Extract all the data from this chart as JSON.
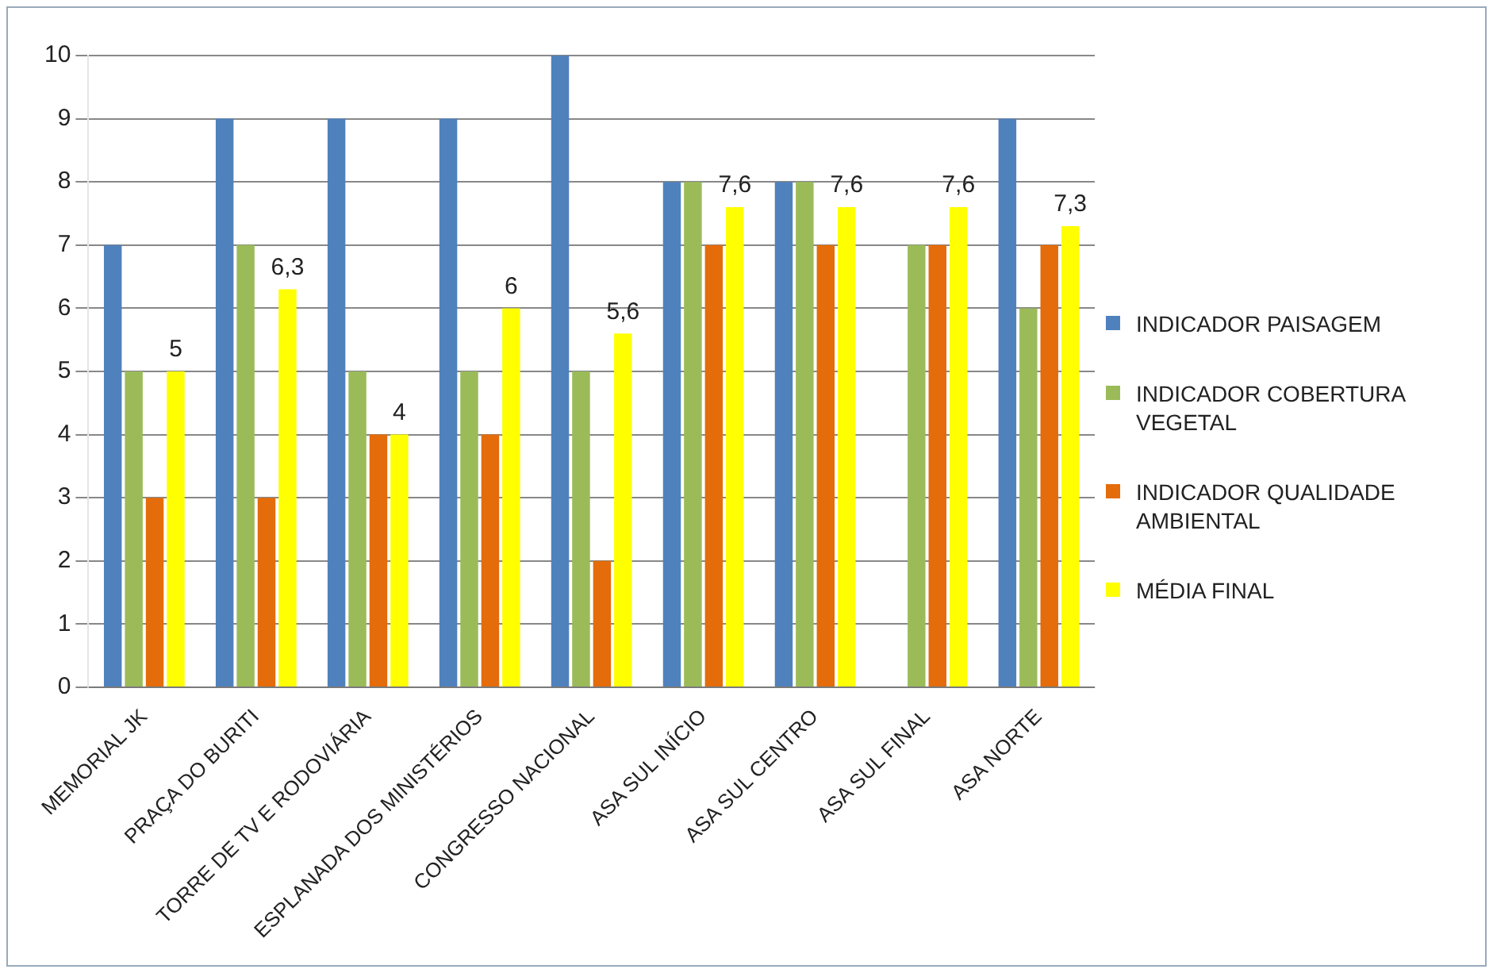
{
  "chart_data": {
    "type": "bar",
    "categories": [
      "MEMORIAL JK",
      "PRAÇA DO BURITI",
      "TORRE DE TV E RODOVIÁRIA",
      "ESPLANADA DOS MINISTÉRIOS",
      "CONGRESSO NACIONAL",
      "ASA SUL INÍCIO",
      "ASA SUL CENTRO",
      "ASA SUL FINAL",
      "ASA NORTE"
    ],
    "series": [
      {
        "name": "INDICADOR PAISAGEM",
        "color": "#4f81bd",
        "values": [
          7,
          9,
          9,
          9,
          10,
          8,
          8,
          0,
          9
        ]
      },
      {
        "name": "INDICADOR COBERTURA VEGETAL",
        "color": "#9bbb59",
        "values": [
          5,
          7,
          5,
          5,
          5,
          8,
          8,
          7,
          6
        ]
      },
      {
        "name": "INDICADOR QUALIDADE AMBIENTAL",
        "color": "#e46c0a",
        "values": [
          3,
          3,
          4,
          4,
          2,
          7,
          7,
          7,
          7
        ]
      },
      {
        "name": "MÉDIA FINAL",
        "color": "#ffff00",
        "values": [
          5,
          6.3,
          4,
          6,
          5.6,
          7.6,
          7.6,
          7.6,
          7.3
        ],
        "value_labels": [
          "5",
          "6,3",
          "4",
          "6",
          "5,6",
          "7,6",
          "7,6",
          "7,6",
          "7,3"
        ]
      }
    ],
    "ylim": [
      0,
      10
    ],
    "yticks": [
      0,
      1,
      2,
      3,
      4,
      5,
      6,
      7,
      8,
      9,
      10
    ],
    "grid": "y",
    "legend": "right"
  }
}
